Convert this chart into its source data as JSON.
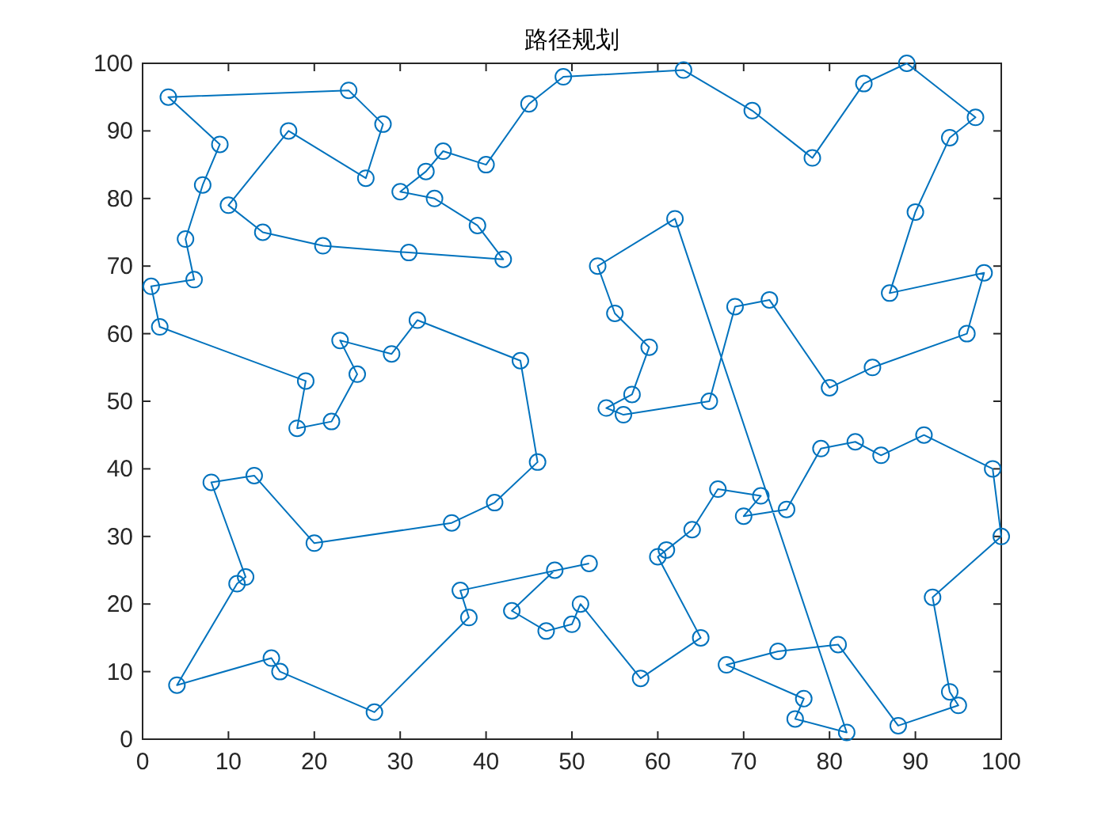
{
  "chart_data": {
    "type": "line",
    "title": "路径规划",
    "color": "#0072bd",
    "marker": "circle",
    "line_style": "solid",
    "xlim": [
      0,
      100
    ],
    "ylim": [
      0,
      100
    ],
    "xticks": [
      0,
      10,
      20,
      30,
      40,
      50,
      60,
      70,
      80,
      90,
      100
    ],
    "yticks": [
      0,
      10,
      20,
      30,
      40,
      50,
      60,
      70,
      80,
      90,
      100
    ],
    "x": [
      52,
      37,
      38,
      27,
      16,
      15,
      4,
      11,
      12,
      8,
      13,
      20,
      36,
      41,
      46,
      44,
      32,
      29,
      23,
      25,
      22,
      18,
      19,
      2,
      1,
      6,
      5,
      7,
      9,
      3,
      24,
      28,
      26,
      17,
      10,
      14,
      21,
      31,
      42,
      39,
      34,
      30,
      33,
      35,
      40,
      45,
      49,
      63,
      71,
      78,
      84,
      89,
      97,
      94,
      90,
      87,
      98,
      96,
      85,
      80,
      73,
      69,
      66,
      56,
      54,
      57,
      59,
      55,
      53,
      62,
      82,
      76,
      77,
      68,
      74,
      81,
      88,
      95,
      94,
      92,
      100,
      99,
      91,
      86,
      83,
      79,
      75,
      70,
      72,
      67,
      64,
      61,
      60,
      65,
      58,
      51,
      50,
      47,
      43,
      48
    ],
    "values": [
      26,
      22,
      18,
      4,
      10,
      12,
      8,
      23,
      24,
      38,
      39,
      29,
      32,
      35,
      41,
      56,
      62,
      57,
      59,
      54,
      47,
      46,
      53,
      61,
      67,
      68,
      74,
      82,
      88,
      95,
      96,
      91,
      83,
      90,
      79,
      75,
      73,
      72,
      71,
      76,
      80,
      81,
      84,
      87,
      85,
      94,
      98,
      99,
      93,
      86,
      97,
      100,
      92,
      89,
      78,
      66,
      69,
      60,
      55,
      52,
      65,
      64,
      50,
      48,
      49,
      51,
      58,
      63,
      70,
      77,
      1,
      3,
      6,
      11,
      13,
      14,
      2,
      5,
      7,
      21,
      30,
      40,
      45,
      42,
      44,
      43,
      34,
      33,
      36,
      37,
      31,
      28,
      27,
      15,
      9,
      20,
      17,
      16,
      19,
      25
    ]
  }
}
